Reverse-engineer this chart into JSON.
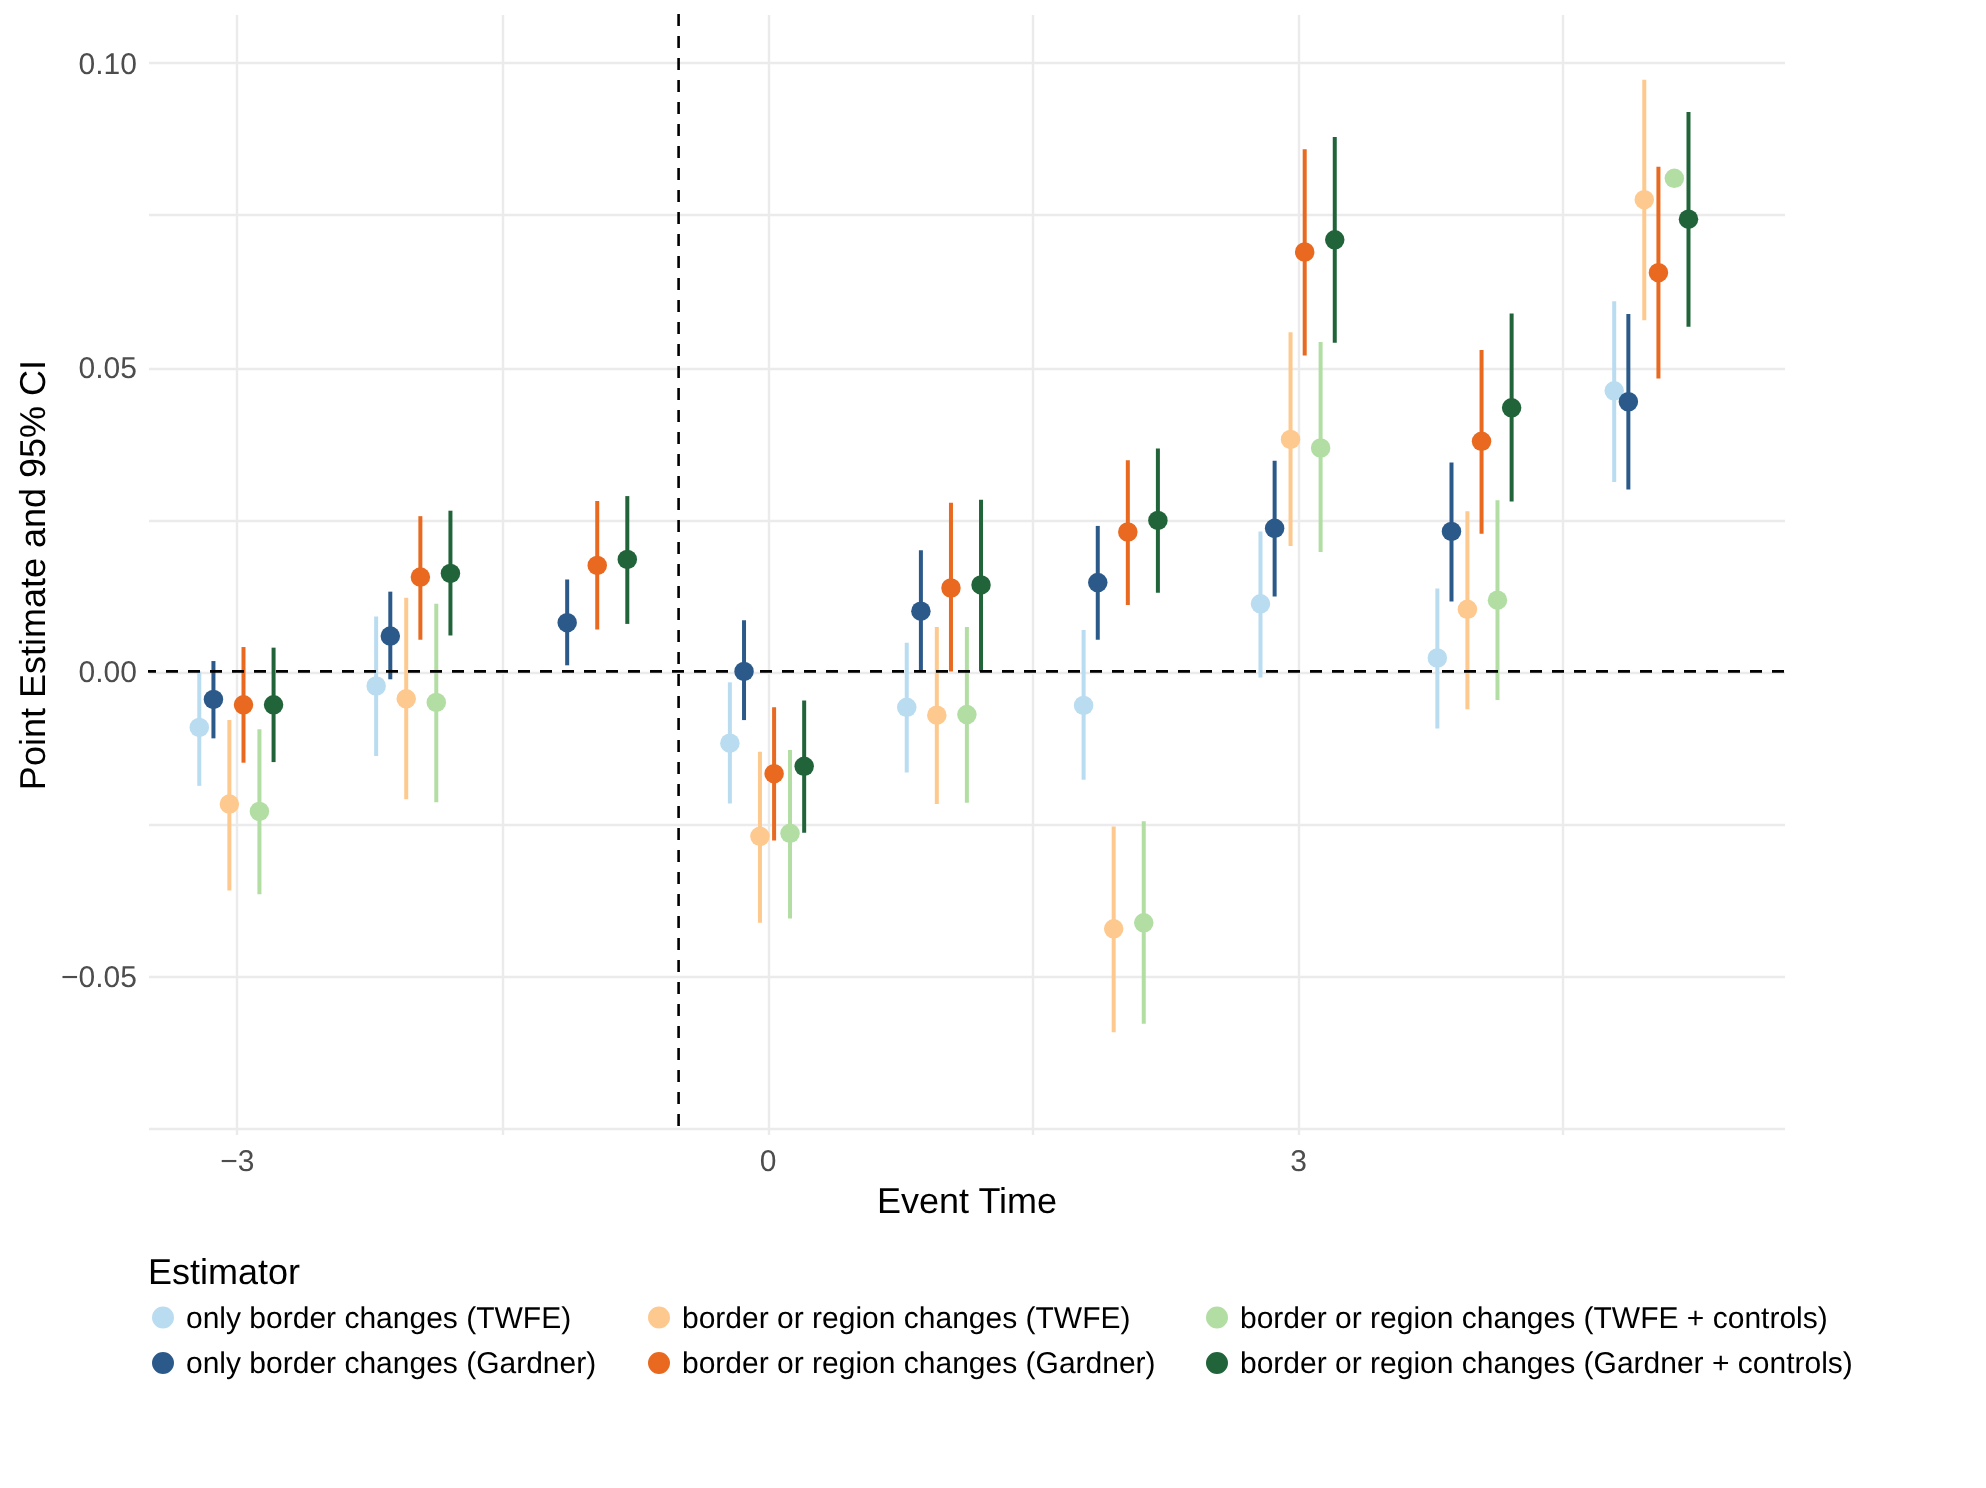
{
  "chart_data": {
    "type": "scatter",
    "xlabel": "Event Time",
    "ylabel": "Point Estimate and 95% CI",
    "legend_title": "Estimator",
    "xlim": [
      -3.5,
      5.75
    ],
    "ylim": [
      -0.076,
      0.108
    ],
    "xticks": [
      {
        "value": -3,
        "label": "−3"
      },
      {
        "value": -1.5,
        "label": null
      },
      0,
      {
        "value": 1.5,
        "label": null
      },
      3,
      {
        "value": 4.5,
        "label": null
      }
    ],
    "yticks": [
      {
        "value": -0.075,
        "label": null
      },
      {
        "value": -0.05,
        "label": "−0.05"
      },
      {
        "value": -0.025,
        "label": null
      },
      {
        "value": 0,
        "label": "0.00"
      },
      {
        "value": 0.025,
        "label": null
      },
      {
        "value": 0.05,
        "label": "0.05"
      },
      {
        "value": 0.075,
        "label": null
      },
      {
        "value": 0.1,
        "label": "0.10"
      }
    ],
    "grid": true,
    "legend": "bottom",
    "marker": "circle",
    "ref_lines": [
      {
        "axis": "y",
        "value": 0,
        "color": "#000000",
        "line_style": "dashed"
      },
      {
        "axis": "x",
        "value": -0.5,
        "color": "#000000",
        "line_style": "dashed"
      }
    ],
    "series": [
      {
        "name": "only border changes (TWFE)",
        "color": "#b9dcf0",
        "x": [
          -3.21,
          -2.21,
          null,
          -0.21,
          0.79,
          1.79,
          2.79,
          3.79,
          4.79
        ],
        "values": [
          -0.0092,
          -0.0024,
          null,
          -0.0118,
          -0.0059,
          -0.0056,
          0.0111,
          0.0022,
          0.0461
        ],
        "errors": [
          [
            -0.0188,
            0.0
          ],
          [
            -0.0139,
            0.009
          ],
          null,
          [
            -0.0217,
            -0.0018
          ],
          [
            -0.0166,
            0.0047
          ],
          [
            -0.0178,
            0.0068
          ],
          [
            -0.001,
            0.023
          ],
          [
            -0.0094,
            0.0136
          ],
          [
            0.0311,
            0.0608
          ]
        ]
      },
      {
        "name": "only border changes (Gardner)",
        "color": "#2b5a8a",
        "x": [
          -3.13,
          -2.13,
          -1.13,
          -0.13,
          0.87,
          1.87,
          2.87,
          3.87,
          4.87
        ],
        "values": [
          -0.0046,
          0.0058,
          0.008,
          0.0,
          0.0099,
          0.0146,
          0.0235,
          0.023,
          0.0443
        ],
        "errors": [
          [
            -0.011,
            0.0017
          ],
          [
            -0.0013,
            0.0131
          ],
          [
            0.001,
            0.0151
          ],
          [
            -0.008,
            0.0084
          ],
          [
            0.0,
            0.0199
          ],
          [
            0.0052,
            0.0239
          ],
          [
            0.0123,
            0.0346
          ],
          [
            0.0115,
            0.0343
          ],
          [
            0.0299,
            0.0587
          ]
        ]
      },
      {
        "name": "border or region changes (TWFE)",
        "color": "#fdc98e",
        "x": [
          -3.04,
          -2.04,
          null,
          -0.04,
          0.96,
          1.96,
          2.96,
          3.96,
          4.96
        ],
        "values": [
          -0.0218,
          -0.0045,
          null,
          -0.0271,
          -0.0072,
          -0.0423,
          0.0381,
          0.0102,
          0.0775
        ],
        "errors": [
          [
            -0.036,
            -0.008
          ],
          [
            -0.021,
            0.0121
          ],
          null,
          [
            -0.0413,
            -0.0132
          ],
          [
            -0.0218,
            0.0073
          ],
          [
            -0.0593,
            -0.0255
          ],
          [
            0.0206,
            0.0557
          ],
          [
            -0.0062,
            0.0263
          ],
          [
            0.0577,
            0.0972
          ]
        ]
      },
      {
        "name": "border or region changes (Gardner)",
        "color": "#e8691f",
        "x": [
          -2.96,
          -1.96,
          -0.96,
          0.04,
          1.04,
          2.04,
          3.04,
          4.04,
          5.04
        ],
        "values": [
          -0.0055,
          0.0155,
          0.0174,
          -0.0168,
          0.0137,
          0.0229,
          0.0689,
          0.0378,
          0.0655
        ],
        "errors": [
          [
            -0.015,
            0.004
          ],
          [
            0.0052,
            0.0255
          ],
          [
            0.0069,
            0.028
          ],
          [
            -0.0278,
            -0.0059
          ],
          [
            0.0,
            0.0277
          ],
          [
            0.0109,
            0.0347
          ],
          [
            0.0519,
            0.0858
          ],
          [
            0.0226,
            0.0528
          ],
          [
            0.0481,
            0.0829
          ]
        ]
      },
      {
        "name": "border or region changes (TWFE + controls)",
        "color": "#b2dea4",
        "x": [
          -2.87,
          -1.87,
          null,
          0.13,
          1.13,
          2.13,
          3.13,
          4.13,
          5.13
        ],
        "values": [
          -0.023,
          -0.0051,
          null,
          -0.0266,
          -0.0071,
          -0.0413,
          0.0367,
          0.0117,
          0.081
        ],
        "errors": [
          [
            -0.0366,
            -0.0095
          ],
          [
            -0.0215,
            0.0111
          ],
          null,
          [
            -0.0406,
            -0.0129
          ],
          [
            -0.0216,
            0.0073
          ],
          [
            -0.0579,
            -0.0246
          ],
          [
            0.0196,
            0.0541
          ],
          [
            -0.0047,
            0.0281
          ],
          null
        ]
      },
      {
        "name": "border or region changes (Gardner + controls)",
        "color": "#22643a",
        "x": [
          -2.79,
          -1.79,
          -0.79,
          0.21,
          1.21,
          2.21,
          3.21,
          4.21,
          5.21
        ],
        "values": [
          -0.0055,
          0.0161,
          0.0184,
          -0.0156,
          0.0142,
          0.0248,
          0.0709,
          0.0433,
          0.0743
        ],
        "errors": [
          [
            -0.0149,
            0.0039
          ],
          [
            0.0059,
            0.0264
          ],
          [
            0.0078,
            0.0288
          ],
          [
            -0.0265,
            -0.0048
          ],
          [
            0.0,
            0.0282
          ],
          [
            0.0129,
            0.0366
          ],
          [
            0.054,
            0.0878
          ],
          [
            0.0279,
            0.0588
          ],
          [
            0.0566,
            0.0919
          ]
        ]
      }
    ]
  }
}
